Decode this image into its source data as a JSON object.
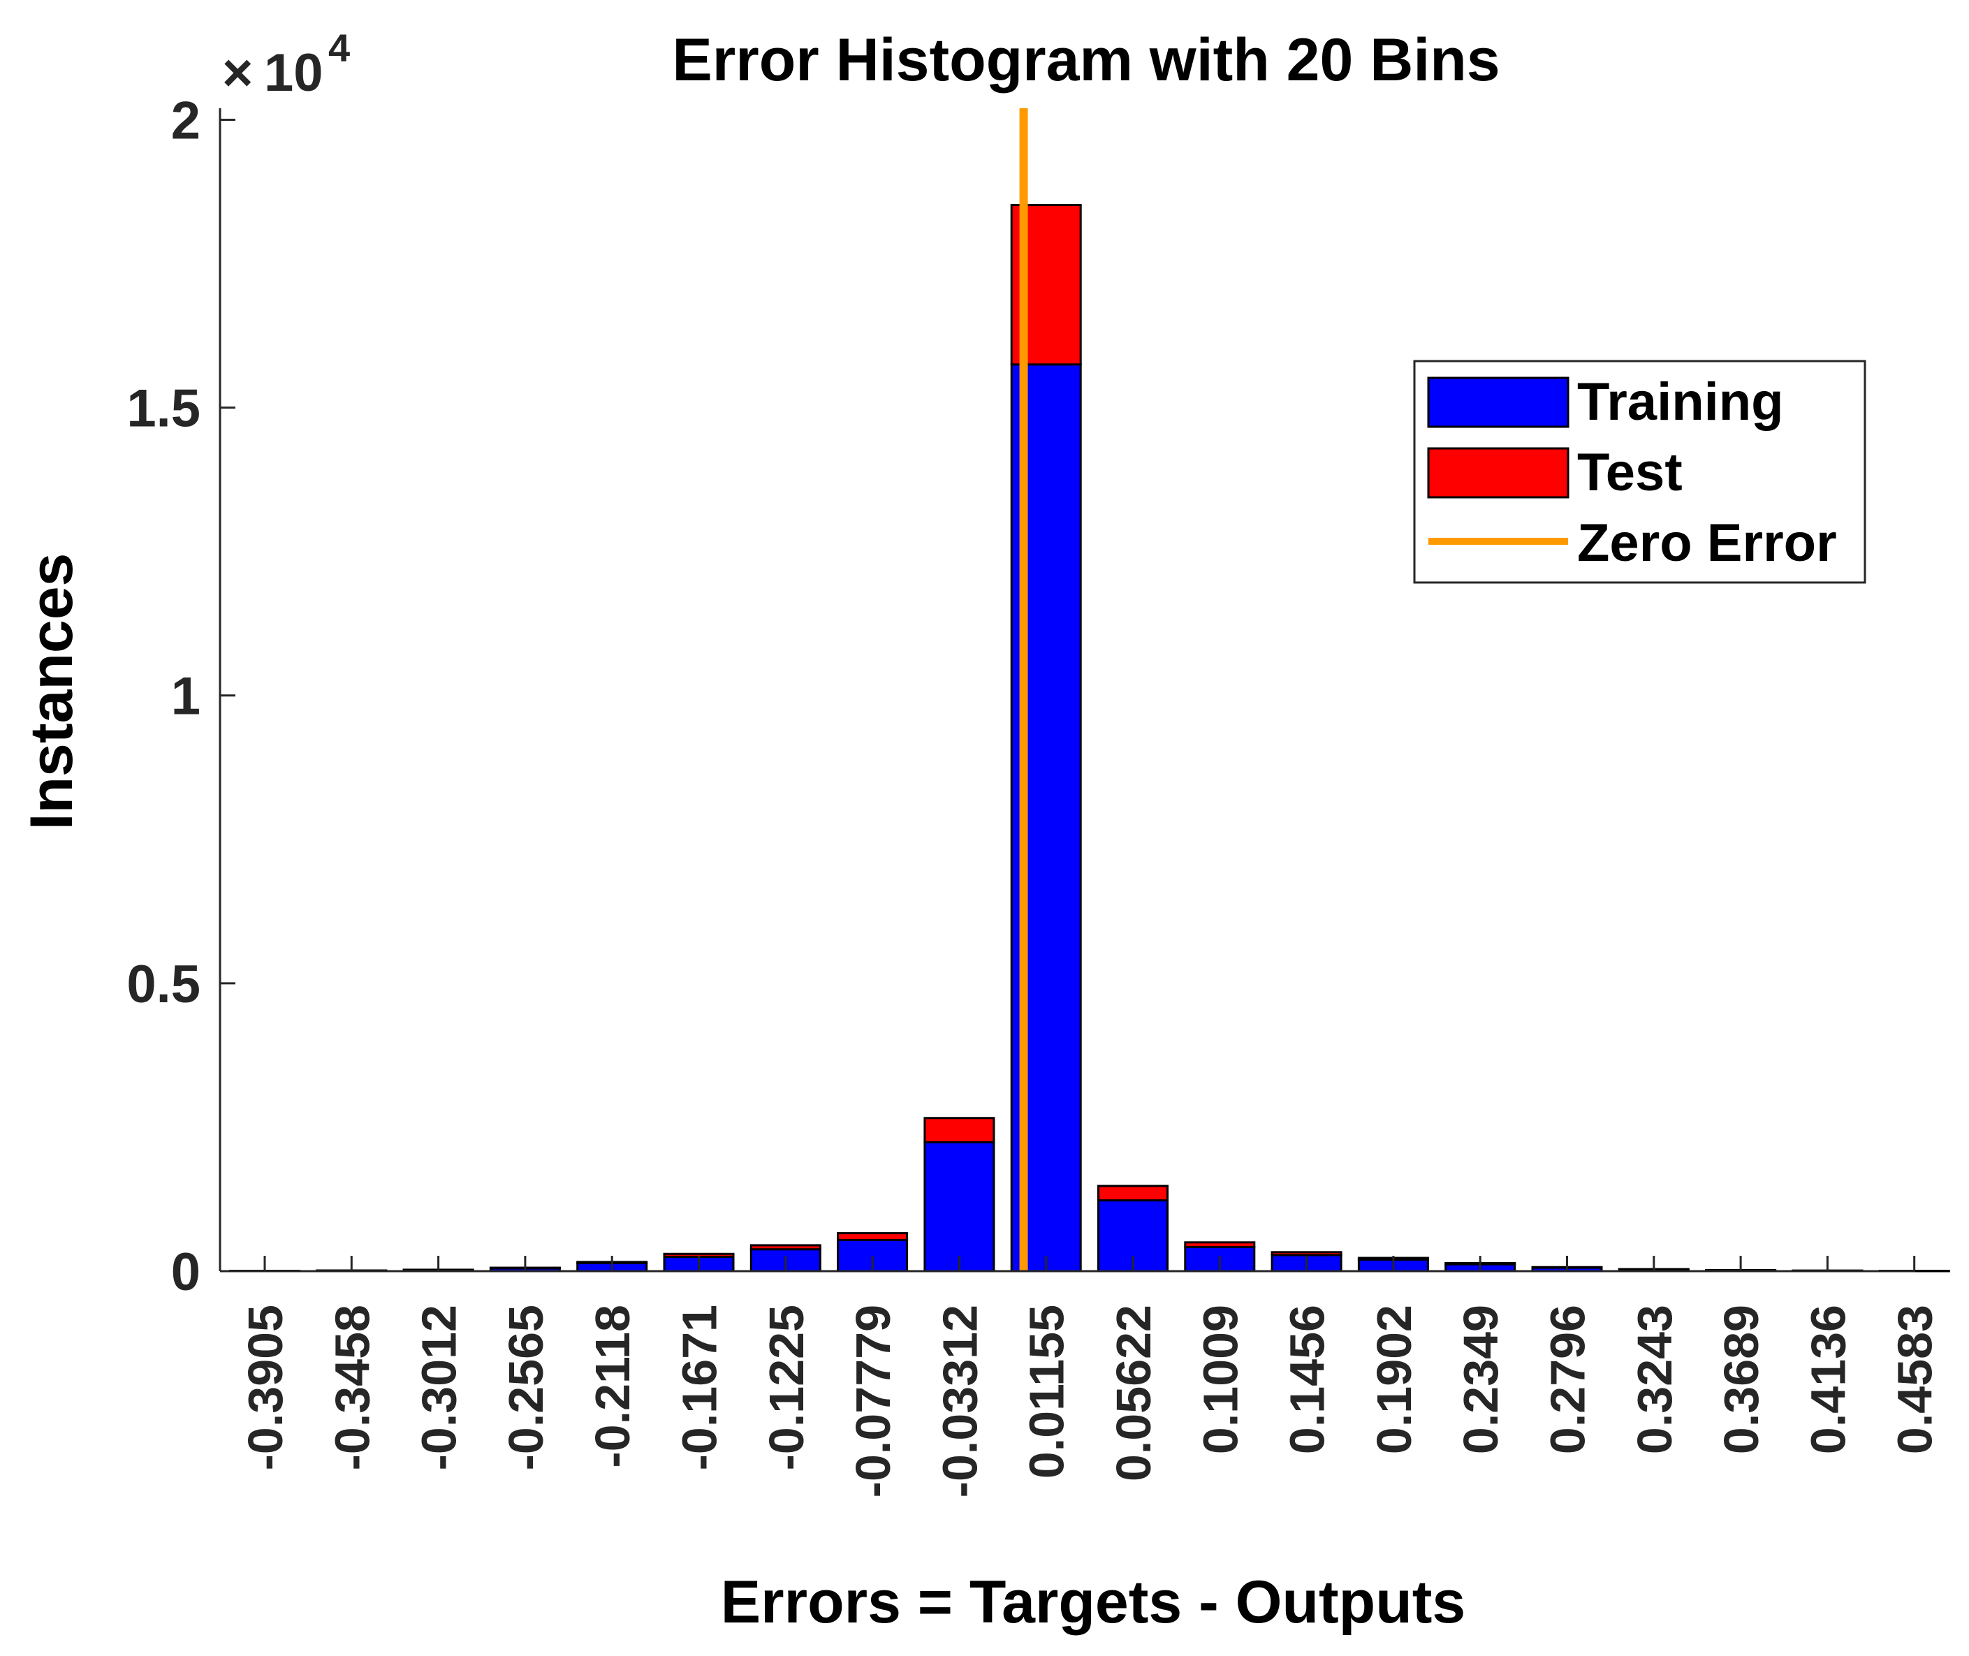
{
  "chart_data": {
    "type": "bar",
    "stacked": true,
    "title": "Error Histogram with 20 Bins",
    "xlabel": "Errors = Targets - Outputs",
    "ylabel": "Instances",
    "y_exponent_base": "10",
    "y_exponent_power": "4",
    "ylim": [
      0,
      20200
    ],
    "yticks": [
      0,
      5000,
      10000,
      15000,
      20000
    ],
    "ytick_labels": [
      "0",
      "0.5",
      "1",
      "1.5",
      "2"
    ],
    "categories": [
      "-0.3905",
      "-0.3458",
      "-0.3012",
      "-0.2565",
      "-0.2118",
      "-0.1671",
      "-0.1225",
      "-0.07779",
      "-0.03312",
      "0.01155",
      "0.05622",
      "0.1009",
      "0.1456",
      "0.1902",
      "0.2349",
      "0.2796",
      "0.3243",
      "0.3689",
      "0.4136",
      "0.4583"
    ],
    "series": [
      {
        "name": "Training",
        "color": "#0000ff",
        "values": [
          5,
          10,
          20,
          50,
          140,
          250,
          380,
          540,
          2240,
          15750,
          1230,
          420,
          280,
          200,
          120,
          60,
          30,
          15,
          8,
          5
        ]
      },
      {
        "name": "Test",
        "color": "#ff0000",
        "values": [
          1,
          2,
          5,
          10,
          20,
          50,
          70,
          120,
          420,
          2770,
          250,
          80,
          50,
          30,
          20,
          10,
          5,
          3,
          2,
          1
        ]
      }
    ],
    "zero_line": {
      "name": "Zero Error",
      "color": "#ff9900",
      "x_value": 0
    },
    "legend": [
      "Training",
      "Test",
      "Zero Error"
    ],
    "legend_position": "top-right",
    "grid": false
  }
}
